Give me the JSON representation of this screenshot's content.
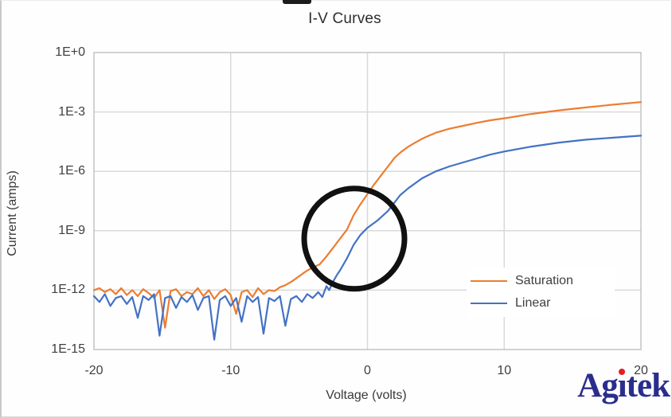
{
  "title": "I-V Curves",
  "axes": {
    "x_title": "Voltage (volts)",
    "y_title": "Current (amps)"
  },
  "logo": {
    "text": "Agitek",
    "prefix": "Ag",
    "dotless_i": "ı",
    "suffix": "tek",
    "text_color": "#2b2d8e",
    "dot_color": "#e31e24"
  },
  "colors": {
    "saturation": "#ED7D31",
    "linear": "#4472C4",
    "gridline": "#d9d9d9",
    "plot_border": "#c3c3c3",
    "annotation": "#111111",
    "tick_text": "#404040"
  },
  "chart_data": {
    "type": "line",
    "title": "I-V Curves",
    "xlabel": "Voltage (volts)",
    "ylabel": "Current (amps)",
    "x_scale": "linear",
    "y_scale": "log10",
    "xlim": [
      -20,
      20
    ],
    "ylim_log10": [
      -15,
      0
    ],
    "grid": true,
    "x_ticks": [
      {
        "label": "-20",
        "v": -20
      },
      {
        "label": "-10",
        "v": -10
      },
      {
        "label": "0",
        "v": 0
      },
      {
        "label": "10",
        "v": 10
      },
      {
        "label": "20",
        "v": 20
      }
    ],
    "y_ticks": [
      {
        "label": "1E+0",
        "exp": 0
      },
      {
        "label": "1E-3",
        "exp": -3
      },
      {
        "label": "1E-6",
        "exp": -6
      },
      {
        "label": "1E-9",
        "exp": -9
      },
      {
        "label": "1E-12",
        "exp": -12
      },
      {
        "label": "1E-15",
        "exp": -15
      }
    ],
    "legend": {
      "position": "inside-right-lower",
      "entries": [
        {
          "label": "Saturation",
          "color": "#ED7D31"
        },
        {
          "label": "Linear",
          "color": "#4472C4"
        }
      ]
    },
    "annotation_circle": {
      "center_volts": -0.96,
      "center_log10_amps": -9.4,
      "radius_px": 63,
      "stroke": "#111111",
      "stroke_width": 7
    },
    "series": [
      {
        "name": "Saturation",
        "color": "#ED7D31",
        "points_v_log10i": [
          [
            -20,
            -12.0
          ],
          [
            -19.6,
            -11.9
          ],
          [
            -19.2,
            -12.1
          ],
          [
            -18.8,
            -11.95
          ],
          [
            -18.4,
            -12.2
          ],
          [
            -18,
            -11.9
          ],
          [
            -17.6,
            -12.25
          ],
          [
            -17.2,
            -12.0
          ],
          [
            -16.8,
            -12.3
          ],
          [
            -16.4,
            -11.95
          ],
          [
            -16,
            -12.15
          ],
          [
            -15.6,
            -12.4
          ],
          [
            -15.2,
            -12.0
          ],
          [
            -14.8,
            -13.9
          ],
          [
            -14.4,
            -12.05
          ],
          [
            -14,
            -11.95
          ],
          [
            -13.6,
            -12.3
          ],
          [
            -13.2,
            -12.1
          ],
          [
            -12.8,
            -12.2
          ],
          [
            -12.4,
            -11.9
          ],
          [
            -12,
            -12.3
          ],
          [
            -11.6,
            -12.0
          ],
          [
            -11.2,
            -12.45
          ],
          [
            -10.8,
            -12.1
          ],
          [
            -10.4,
            -11.95
          ],
          [
            -10,
            -12.25
          ],
          [
            -9.6,
            -13.2
          ],
          [
            -9.2,
            -12.1
          ],
          [
            -8.8,
            -12.0
          ],
          [
            -8.4,
            -12.35
          ],
          [
            -8,
            -11.9
          ],
          [
            -7.6,
            -12.2
          ],
          [
            -7.2,
            -12.0
          ],
          [
            -6.8,
            -12.05
          ],
          [
            -6.4,
            -11.85
          ],
          [
            -6,
            -11.75
          ],
          [
            -5.5,
            -11.55
          ],
          [
            -5,
            -11.3
          ],
          [
            -4.5,
            -11.05
          ],
          [
            -4,
            -10.85
          ],
          [
            -3.5,
            -10.7
          ],
          [
            -3,
            -10.3
          ],
          [
            -2.5,
            -9.85
          ],
          [
            -2,
            -9.4
          ],
          [
            -1.5,
            -8.95
          ],
          [
            -1,
            -8.2
          ],
          [
            -0.5,
            -7.65
          ],
          [
            0,
            -7.15
          ],
          [
            0.5,
            -6.65
          ],
          [
            1,
            -6.2
          ],
          [
            1.5,
            -5.75
          ],
          [
            2,
            -5.3
          ],
          [
            2.5,
            -5.0
          ],
          [
            3,
            -4.75
          ],
          [
            3.5,
            -4.55
          ],
          [
            4,
            -4.35
          ],
          [
            4.5,
            -4.2
          ],
          [
            5,
            -4.05
          ],
          [
            6,
            -3.85
          ],
          [
            7,
            -3.7
          ],
          [
            8,
            -3.55
          ],
          [
            9,
            -3.42
          ],
          [
            10,
            -3.32
          ],
          [
            12,
            -3.1
          ],
          [
            14,
            -2.92
          ],
          [
            16,
            -2.77
          ],
          [
            18,
            -2.63
          ],
          [
            20,
            -2.5
          ]
        ]
      },
      {
        "name": "Linear",
        "color": "#4472C4",
        "points_v_log10i": [
          [
            -20,
            -12.3
          ],
          [
            -19.6,
            -12.6
          ],
          [
            -19.2,
            -12.2
          ],
          [
            -18.8,
            -12.8
          ],
          [
            -18.4,
            -12.4
          ],
          [
            -18,
            -12.3
          ],
          [
            -17.6,
            -12.7
          ],
          [
            -17.2,
            -12.35
          ],
          [
            -16.8,
            -13.4
          ],
          [
            -16.4,
            -12.3
          ],
          [
            -16,
            -12.5
          ],
          [
            -15.6,
            -12.2
          ],
          [
            -15.2,
            -14.3
          ],
          [
            -14.8,
            -12.4
          ],
          [
            -14.4,
            -12.3
          ],
          [
            -14,
            -12.9
          ],
          [
            -13.6,
            -12.35
          ],
          [
            -13.2,
            -12.6
          ],
          [
            -12.8,
            -12.25
          ],
          [
            -12.4,
            -13.0
          ],
          [
            -12,
            -12.4
          ],
          [
            -11.6,
            -12.3
          ],
          [
            -11.2,
            -14.5
          ],
          [
            -10.8,
            -12.5
          ],
          [
            -10.4,
            -12.3
          ],
          [
            -10,
            -12.8
          ],
          [
            -9.6,
            -12.4
          ],
          [
            -9.2,
            -13.6
          ],
          [
            -8.8,
            -12.3
          ],
          [
            -8.4,
            -12.6
          ],
          [
            -8,
            -12.35
          ],
          [
            -7.6,
            -14.2
          ],
          [
            -7.2,
            -12.4
          ],
          [
            -6.8,
            -12.55
          ],
          [
            -6.4,
            -12.3
          ],
          [
            -6,
            -13.8
          ],
          [
            -5.6,
            -12.45
          ],
          [
            -5.2,
            -12.3
          ],
          [
            -4.8,
            -12.6
          ],
          [
            -4.4,
            -12.2
          ],
          [
            -4,
            -12.4
          ],
          [
            -3.6,
            -12.1
          ],
          [
            -3.3,
            -12.35
          ],
          [
            -3,
            -11.8
          ],
          [
            -2.8,
            -12.0
          ],
          [
            -2.5,
            -11.55
          ],
          [
            -2.2,
            -11.2
          ],
          [
            -2,
            -11.0
          ],
          [
            -1.5,
            -10.4
          ],
          [
            -1,
            -9.7
          ],
          [
            -0.5,
            -9.2
          ],
          [
            0,
            -8.85
          ],
          [
            0.7,
            -8.5
          ],
          [
            1.5,
            -8.0
          ],
          [
            2.4,
            -7.2
          ],
          [
            3,
            -6.85
          ],
          [
            4,
            -6.35
          ],
          [
            5,
            -6.0
          ],
          [
            6,
            -5.75
          ],
          [
            7,
            -5.55
          ],
          [
            8,
            -5.35
          ],
          [
            9,
            -5.15
          ],
          [
            10,
            -5.0
          ],
          [
            12,
            -4.75
          ],
          [
            14,
            -4.55
          ],
          [
            16,
            -4.4
          ],
          [
            18,
            -4.3
          ],
          [
            20,
            -4.2
          ]
        ]
      }
    ]
  }
}
